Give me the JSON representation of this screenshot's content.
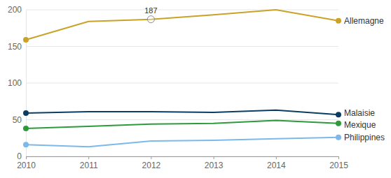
{
  "chart_data": {
    "type": "line",
    "x": [
      2010,
      2011,
      2012,
      2013,
      2014,
      2015
    ],
    "series": [
      {
        "name": "Allemagne",
        "color": "#c9a227",
        "values": [
          159,
          184,
          187,
          193,
          200,
          185
        ]
      },
      {
        "name": "Malaisie",
        "color": "#0b3d62",
        "values": [
          59,
          61,
          61,
          60,
          63,
          57
        ]
      },
      {
        "name": "Mexique",
        "color": "#2e9a3c",
        "values": [
          38,
          41,
          44,
          45,
          49,
          45
        ]
      },
      {
        "name": "Philippines",
        "color": "#7cb8ec",
        "values": [
          16,
          13,
          21,
          22,
          24,
          26
        ]
      }
    ],
    "xlim": [
      2010,
      2015
    ],
    "xticks": [
      2010,
      2011,
      2012,
      2013,
      2014,
      2015
    ],
    "ylim": [
      0,
      200
    ],
    "yticks": [
      0,
      50,
      100,
      150,
      200
    ],
    "grid": true,
    "marker": "circle",
    "annotations": [
      {
        "x": 2012,
        "y": 187,
        "text": "187"
      }
    ]
  }
}
